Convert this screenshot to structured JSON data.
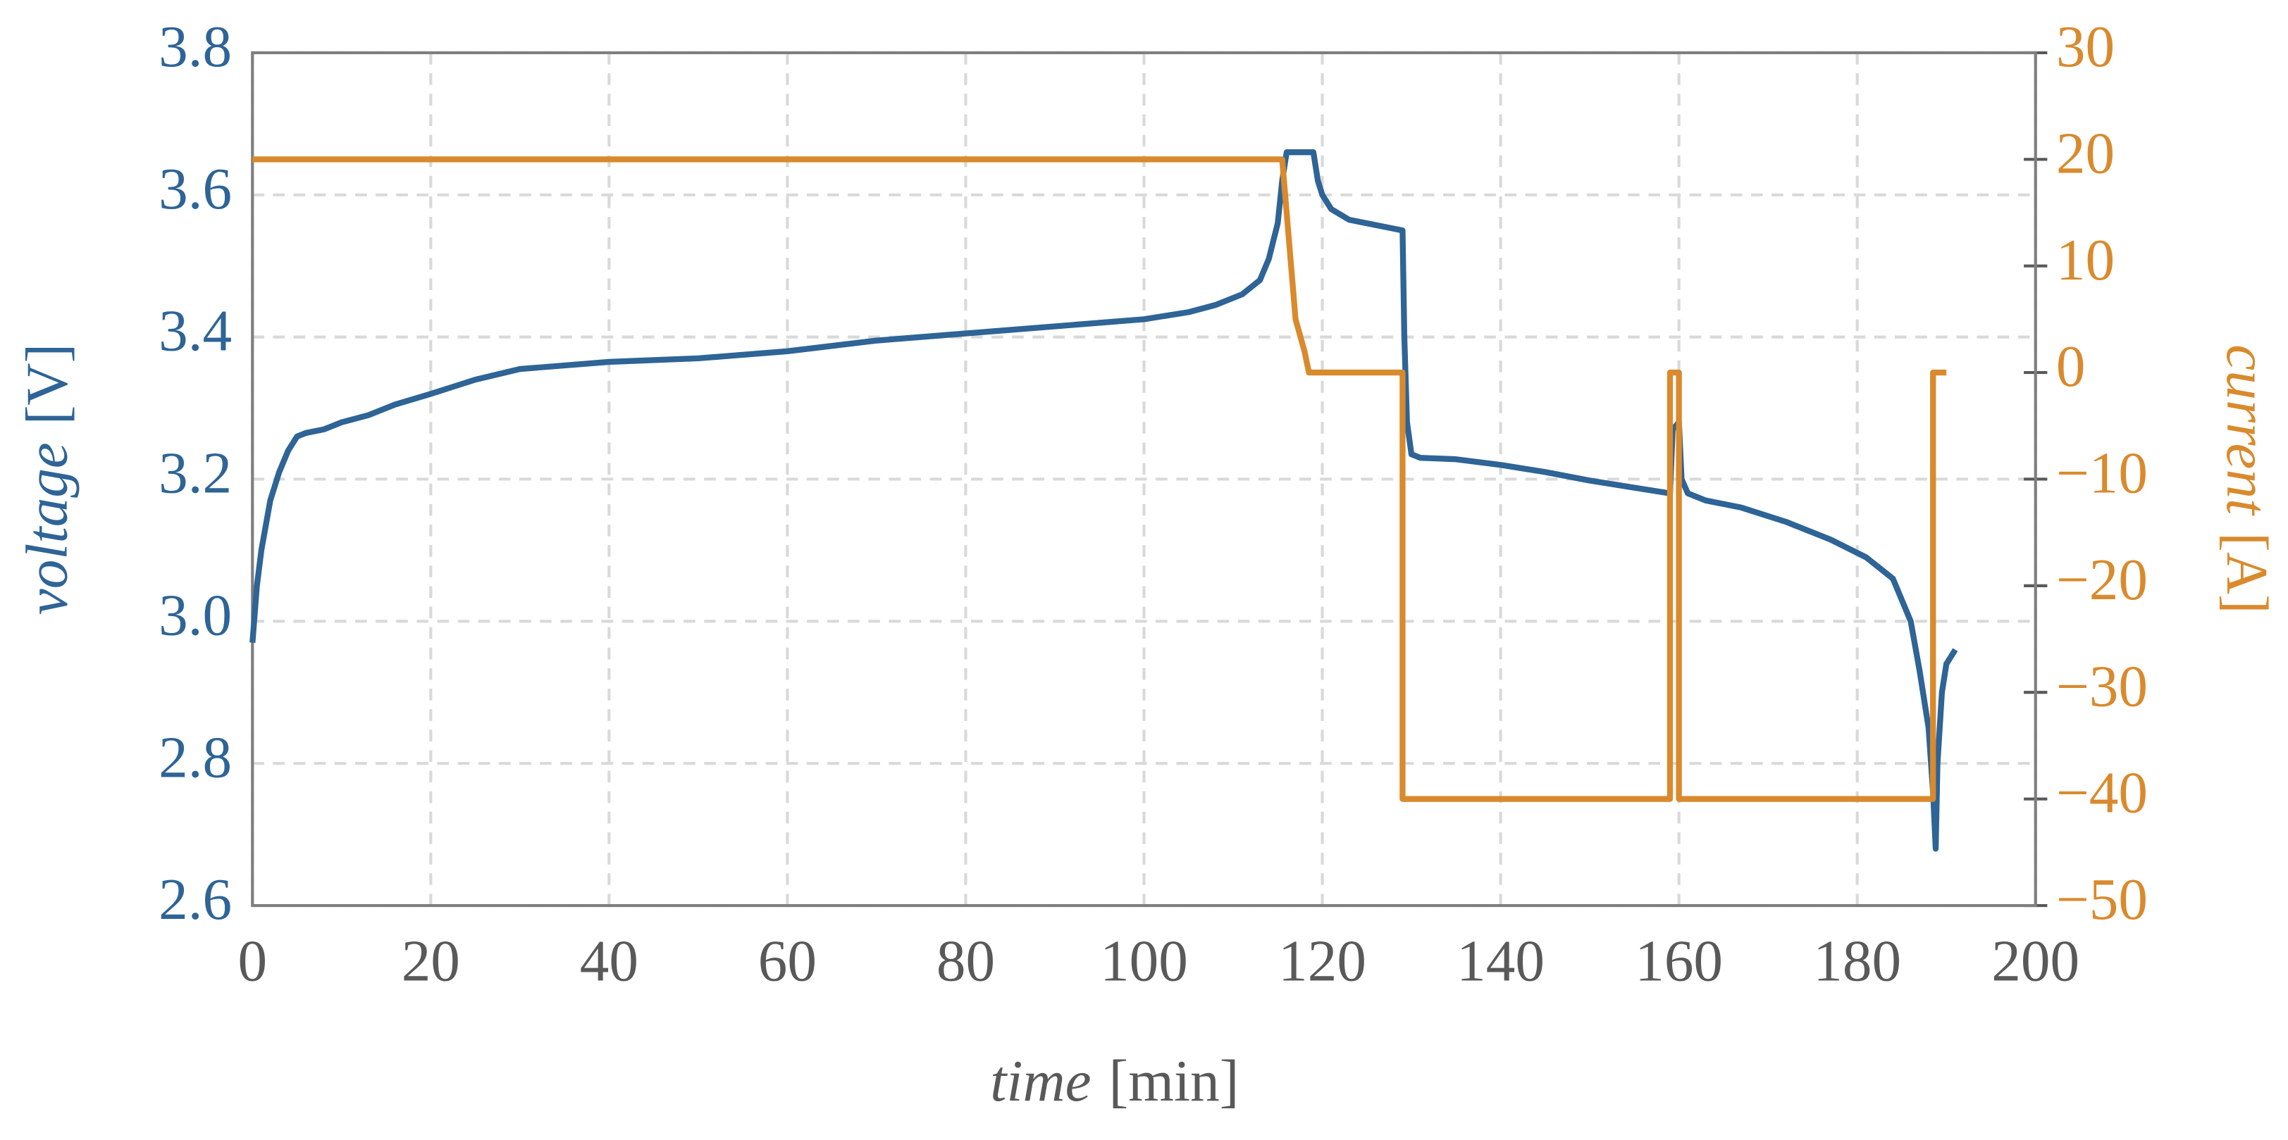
{
  "chart_data": {
    "type": "line",
    "xlabel": {
      "name": "time",
      "unit": "[min]"
    },
    "ylabel": {
      "name": "voltage",
      "unit": "[V]"
    },
    "y2label": {
      "name": "current",
      "unit": "[A]"
    },
    "xlim": [
      0,
      200
    ],
    "xticks": [
      0,
      20,
      40,
      60,
      80,
      100,
      120,
      140,
      160,
      180,
      200
    ],
    "ylim": [
      2.6,
      3.8
    ],
    "yticks": [
      2.6,
      2.8,
      {
        "value": 3,
        "label": "3.0"
      },
      3.2,
      3.4,
      3.6,
      3.8
    ],
    "y2lim": [
      -50,
      30
    ],
    "y2ticks": [
      {
        "value": -50,
        "label": "−50"
      },
      {
        "value": -40,
        "label": "−40"
      },
      {
        "value": -30,
        "label": "−30"
      },
      {
        "value": -20,
        "label": "−20"
      },
      {
        "value": -10,
        "label": "−10"
      },
      0,
      10,
      20,
      30
    ],
    "grid": true,
    "series": [
      {
        "name": "voltage",
        "color": "#2e6496",
        "axis": "y",
        "x": [
          0,
          0.5,
          1,
          2,
          3,
          4,
          5,
          6,
          8,
          10,
          13,
          16,
          20,
          25,
          30,
          35,
          40,
          50,
          60,
          70,
          80,
          90,
          100,
          105,
          108,
          111,
          113,
          114,
          115,
          115.5,
          116,
          119,
          119.5,
          120,
          121,
          123,
          125,
          127,
          129,
          129.2,
          129.5,
          130,
          131,
          135,
          140,
          145,
          150,
          155,
          159,
          159.3,
          160,
          160.3,
          161,
          163,
          167,
          172,
          177,
          181,
          184,
          186,
          187,
          188,
          188.5,
          188.8,
          189,
          189.5,
          190,
          191
        ],
        "values": [
          2.97,
          3.05,
          3.1,
          3.17,
          3.21,
          3.24,
          3.26,
          3.265,
          3.27,
          3.28,
          3.29,
          3.305,
          3.32,
          3.34,
          3.355,
          3.36,
          3.365,
          3.37,
          3.38,
          3.395,
          3.405,
          3.415,
          3.425,
          3.435,
          3.445,
          3.46,
          3.48,
          3.51,
          3.56,
          3.62,
          3.66,
          3.66,
          3.62,
          3.6,
          3.58,
          3.565,
          3.56,
          3.555,
          3.55,
          3.4,
          3.28,
          3.235,
          3.23,
          3.228,
          3.22,
          3.21,
          3.198,
          3.188,
          3.18,
          3.27,
          3.28,
          3.2,
          3.18,
          3.17,
          3.16,
          3.14,
          3.115,
          3.09,
          3.06,
          3.0,
          2.93,
          2.85,
          2.76,
          2.68,
          2.8,
          2.9,
          2.94,
          2.96
        ]
      },
      {
        "name": "current",
        "color": "#d98a2d",
        "axis": "y2",
        "x": [
          0,
          115.5,
          116,
          116.5,
          117,
          118,
          118.5,
          129,
          129,
          159,
          159,
          160,
          160,
          188.5,
          188.5,
          190
        ],
        "values": [
          20,
          20,
          15,
          10,
          5,
          2,
          0,
          0,
          -40,
          -40,
          0,
          0,
          -40,
          -40,
          0,
          0
        ]
      }
    ]
  }
}
